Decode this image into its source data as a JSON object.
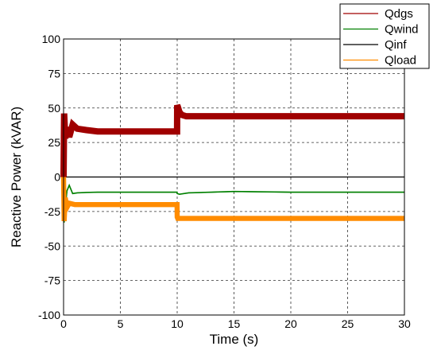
{
  "chart_data": {
    "type": "line",
    "title": "",
    "xlabel": "Time (s)",
    "ylabel": "Reactive Power (kVAR)",
    "xlim": [
      0,
      30
    ],
    "ylim": [
      -100,
      100
    ],
    "xticks": [
      "0",
      "5",
      "10",
      "15",
      "20",
      "25",
      "30"
    ],
    "yticks": [
      "100",
      "75",
      "50",
      "25",
      "0",
      "-25",
      "-50",
      "-75",
      "-100"
    ],
    "grid": true,
    "legend_position": "top-right",
    "series": [
      {
        "name": "Qdgs",
        "color": "#a00000",
        "band": 5,
        "x": [
          0,
          0.05,
          0.15,
          0.3,
          0.5,
          0.8,
          1.2,
          2,
          3,
          5,
          7,
          9,
          9.99,
          10,
          10.05,
          10.2,
          10.4,
          10.8,
          12,
          15,
          20,
          25,
          30
        ],
        "y": [
          0,
          46,
          28,
          36,
          29,
          38,
          35,
          34,
          33,
          33,
          33,
          33,
          33,
          52,
          51,
          47,
          45,
          44,
          44,
          44,
          44,
          44,
          44
        ]
      },
      {
        "name": "Qwind",
        "color": "#008000",
        "band": 1,
        "x": [
          0,
          0.05,
          0.15,
          0.3,
          0.5,
          0.8,
          1.2,
          2,
          3,
          5,
          7,
          9,
          9.99,
          10,
          10.2,
          11,
          13,
          15,
          20,
          25,
          30
        ],
        "y": [
          0,
          -33,
          -22,
          -10,
          -6,
          -12,
          -11.5,
          -11.2,
          -11,
          -11,
          -11,
          -11,
          -11,
          -12,
          -12.5,
          -11.5,
          -11,
          -10.5,
          -11,
          -11,
          -11
        ]
      },
      {
        "name": "Qinf",
        "color": "#000000",
        "band": 0,
        "x": [
          0,
          0.05,
          0.1,
          30
        ],
        "y": [
          0,
          -8,
          0,
          0
        ]
      },
      {
        "name": "Qload",
        "color": "#ff8c00",
        "band": 4,
        "x": [
          0,
          0.05,
          0.15,
          0.3,
          0.5,
          1,
          3,
          5,
          7,
          9,
          9.99,
          10,
          10.05,
          12,
          15,
          20,
          25,
          30
        ],
        "y": [
          0,
          -32,
          -15,
          -22,
          -19,
          -20,
          -20,
          -20,
          -20,
          -20,
          -20,
          -29,
          -30,
          -30,
          -30,
          -30,
          -30,
          -30
        ]
      }
    ]
  }
}
